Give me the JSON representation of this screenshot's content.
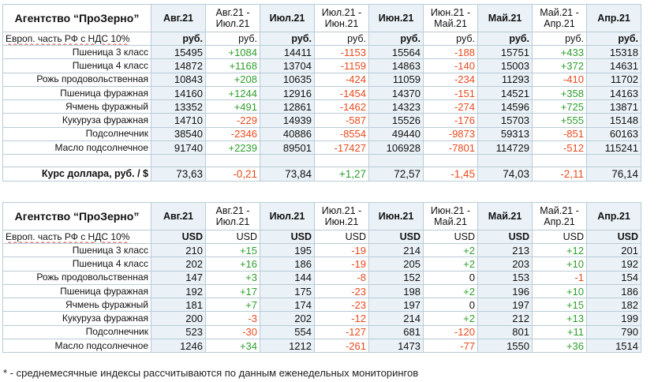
{
  "agency": "Агентство “ПроЗерно”",
  "headers": [
    "Авг.21",
    "Авг.21 -\nИюл.21",
    "Июл.21",
    "Июл.21 -\nИюн.21",
    "Июн.21",
    "Июн.21 -\nМай.21",
    "Май.21",
    "Май.21 -\nАпр.21",
    "Апр.21"
  ],
  "unit_label": "Европ. часть РФ с НДС 10%",
  "rub_table": {
    "units": [
      "руб.",
      "руб.",
      "руб.",
      "руб.",
      "руб.",
      "руб.",
      "руб.",
      "руб.",
      "руб."
    ],
    "rows": [
      {
        "name": "Пшеница 3 класс",
        "cells": [
          "15495",
          "+1084",
          "14411",
          "-1153",
          "15564",
          "-188",
          "15751",
          "+433",
          "15318"
        ]
      },
      {
        "name": "Пшеница 4 класс",
        "cells": [
          "14872",
          "+1168",
          "13704",
          "-1159",
          "14863",
          "-140",
          "15003",
          "+372",
          "14631"
        ]
      },
      {
        "name": "Рожь продовольственная",
        "cells": [
          "10843",
          "+208",
          "10635",
          "-424",
          "11059",
          "-234",
          "11293",
          "-410",
          "11702"
        ]
      },
      {
        "name": "Пшеница фуражная",
        "cells": [
          "14160",
          "+1244",
          "12916",
          "-1454",
          "14370",
          "-151",
          "14521",
          "+358",
          "14163"
        ]
      },
      {
        "name": "Ячмень фуражный",
        "cells": [
          "13352",
          "+491",
          "12861",
          "-1462",
          "14323",
          "-274",
          "14596",
          "+725",
          "13871"
        ]
      },
      {
        "name": "Кукуруза фуражная",
        "cells": [
          "14710",
          "-229",
          "14939",
          "-587",
          "15526",
          "-176",
          "15703",
          "+555",
          "15148"
        ]
      },
      {
        "name": "Подсолнечник",
        "cells": [
          "38540",
          "-2346",
          "40886",
          "-8554",
          "49440",
          "-9873",
          "59313",
          "-851",
          "60163"
        ]
      },
      {
        "name": "Масло подсолнечное",
        "cells": [
          "91740",
          "+2239",
          "89501",
          "-17427",
          "106928",
          "-7801",
          "114729",
          "-512",
          "115241"
        ]
      }
    ]
  },
  "rate": {
    "name": "Курс доллара, руб. / $",
    "cells": [
      "73,63",
      "-0,21",
      "73,84",
      "+1,27",
      "72,57",
      "-1,45",
      "74,03",
      "-2,11",
      "76,14"
    ]
  },
  "usd_table": {
    "units": [
      "USD",
      "USD",
      "USD",
      "USD",
      "USD",
      "USD",
      "USD",
      "USD",
      "USD"
    ],
    "rows": [
      {
        "name": "Пшеница 3 класс",
        "cells": [
          "210",
          "+15",
          "195",
          "-19",
          "214",
          "+2",
          "213",
          "+12",
          "201"
        ]
      },
      {
        "name": "Пшеница 4 класс",
        "cells": [
          "202",
          "+16",
          "186",
          "-19",
          "205",
          "+2",
          "203",
          "+10",
          "192"
        ]
      },
      {
        "name": "Рожь продовольственная",
        "cells": [
          "147",
          "+3",
          "144",
          "-8",
          "152",
          "0",
          "153",
          "-1",
          "154"
        ]
      },
      {
        "name": "Пшеница фуражная",
        "cells": [
          "192",
          "+17",
          "175",
          "-23",
          "198",
          "+2",
          "196",
          "+10",
          "186"
        ]
      },
      {
        "name": "Ячмень фуражный",
        "cells": [
          "181",
          "+7",
          "174",
          "-23",
          "197",
          "0",
          "197",
          "+15",
          "182"
        ]
      },
      {
        "name": "Кукуруза фуражная",
        "cells": [
          "200",
          "-3",
          "202",
          "-12",
          "214",
          "+2",
          "212",
          "+13",
          "199"
        ]
      },
      {
        "name": "Подсолнечник",
        "cells": [
          "523",
          "-30",
          "554",
          "-127",
          "681",
          "-120",
          "801",
          "+11",
          "790"
        ]
      },
      {
        "name": "Масло подсолнечное",
        "cells": [
          "1246",
          "+34",
          "1212",
          "-261",
          "1473",
          "-77",
          "1550",
          "+36",
          "1514"
        ]
      }
    ]
  },
  "footnote": "* - среднемесячные индексы рассчитываются по данным еженедельных мониторингов",
  "colors": {
    "positive": "#2e9e2e",
    "negative": "#e84a1e",
    "border": "#b9cbd6",
    "shade": "#eaf2f7"
  }
}
